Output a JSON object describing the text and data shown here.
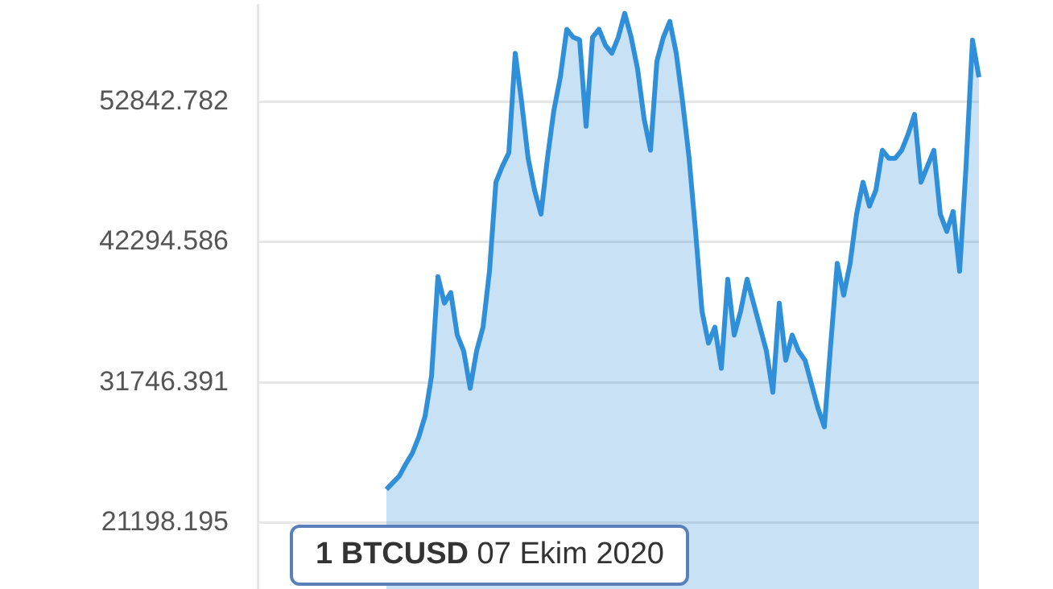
{
  "chart_data": {
    "type": "area",
    "annotations": [
      "1 BTCUSD 07 Ekim 2020"
    ],
    "categories": [
      null,
      null,
      null,
      null,
      null,
      null,
      null,
      null,
      null,
      null,
      null,
      null,
      null,
      null,
      null,
      null,
      null,
      null,
      null,
      null,
      null,
      null,
      null,
      null,
      null,
      null,
      null,
      null,
      null,
      null,
      null,
      null,
      null,
      null,
      null,
      null,
      null,
      null,
      null,
      null,
      null,
      null,
      null,
      null,
      null,
      null,
      null,
      null,
      null,
      null,
      null,
      null,
      null,
      null,
      null,
      null,
      null,
      null,
      null,
      null,
      null,
      null,
      null,
      null,
      null,
      null,
      null,
      null,
      null,
      null,
      null,
      null,
      null,
      null,
      null,
      null,
      null,
      null,
      null,
      null,
      null,
      null,
      null,
      null,
      null,
      null,
      null,
      null,
      null,
      null,
      null,
      null,
      null,
      null,
      null,
      null,
      null,
      null,
      null,
      null,
      null,
      null,
      null,
      null,
      null,
      null,
      null,
      null,
      null,
      null,
      null,
      null,
      null
    ],
    "series": [
      {
        "color": "#2f8fd8",
        "values": [
          null,
          null,
          null,
          null,
          null,
          null,
          null,
          null,
          null,
          null,
          null,
          null,
          null,
          null,
          null,
          null,
          null,
          null,
          null,
          null,
          23700,
          24200,
          24700,
          25600,
          26400,
          27600,
          29200,
          32200,
          39700,
          37700,
          38500,
          35300,
          34100,
          31300,
          34100,
          35900,
          40100,
          46800,
          48000,
          49000,
          56500,
          52800,
          48600,
          46200,
          44400,
          48600,
          52200,
          54700,
          58300,
          57700,
          57500,
          51000,
          57700,
          58300,
          57100,
          56500,
          57700,
          59500,
          57700,
          55300,
          51600,
          49200,
          55900,
          57700,
          58900,
          56500,
          52800,
          48600,
          43100,
          37100,
          34700,
          35900,
          32800,
          39500,
          35300,
          37100,
          39500,
          37700,
          35900,
          34100,
          31000,
          37700,
          33400,
          35300,
          34100,
          33400,
          31600,
          29800,
          28400,
          34700,
          40700,
          38300,
          40700,
          44400,
          46800,
          45000,
          46200,
          49200,
          48600,
          48600,
          49200,
          50400,
          51900,
          46800,
          48000,
          49200,
          44400,
          43100,
          44600,
          40100,
          48000,
          57500,
          54700
        ]
      }
    ],
    "ylim": [
      15742,
      60117
    ],
    "yticks": [
      21198.195,
      31746.391,
      42294.586,
      52842.782
    ],
    "grid": "y",
    "legend": false
  }
}
